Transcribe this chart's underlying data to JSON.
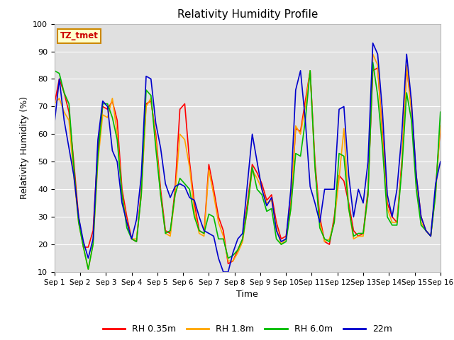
{
  "title": "Relativity Humidity Profile",
  "xlabel": "Time",
  "ylabel": "Relativity Humidity (%)",
  "ylim": [
    10,
    100
  ],
  "yticks": [
    10,
    20,
    30,
    40,
    50,
    60,
    70,
    80,
    90,
    100
  ],
  "xtick_labels": [
    "Sep 1",
    "Sep 2",
    "Sep 3",
    "Sep 4",
    "Sep 5",
    "Sep 6",
    "Sep 7",
    "Sep 8",
    "Sep 9",
    "Sep 10",
    "Sep 11",
    "Sep 12",
    "Sep 13",
    "Sep 14",
    "Sep 15",
    "Sep 16"
  ],
  "plot_bg_color": "#e0e0e0",
  "grid_color": "#ffffff",
  "legend_labels": [
    "RH 0.35m",
    "RH 1.8m",
    "RH 6.0m",
    "22m"
  ],
  "legend_colors": [
    "#ff0000",
    "#ffa500",
    "#00bb00",
    "#0000cc"
  ],
  "annotation_text": "TZ_tmet",
  "annotation_color": "#cc0000",
  "annotation_bg": "#ffffcc",
  "annotation_border": "#cc8800",
  "line_width": 1.2,
  "rh035": [
    71,
    80,
    75,
    68,
    50,
    30,
    19,
    19,
    25,
    55,
    70,
    69,
    72,
    65,
    40,
    30,
    22,
    21,
    40,
    71,
    72,
    60,
    40,
    25,
    24,
    40,
    69,
    71,
    50,
    35,
    25,
    24,
    49,
    40,
    30,
    25,
    13,
    14,
    18,
    22,
    35,
    49,
    46,
    42,
    36,
    38,
    28,
    22,
    23,
    35,
    62,
    61,
    72,
    83,
    50,
    30,
    21,
    20,
    30,
    45,
    43,
    35,
    25,
    23,
    24,
    40,
    83,
    84,
    60,
    35,
    30,
    28,
    50,
    84,
    70,
    45,
    30,
    25,
    23,
    40,
    63
  ],
  "rh18": [
    71,
    73,
    68,
    65,
    45,
    28,
    19,
    11,
    20,
    50,
    67,
    66,
    73,
    60,
    38,
    28,
    22,
    22,
    38,
    70,
    73,
    58,
    38,
    24,
    23,
    38,
    60,
    58,
    48,
    32,
    24,
    23,
    47,
    38,
    28,
    23,
    14,
    14,
    17,
    21,
    33,
    47,
    44,
    40,
    35,
    36,
    26,
    20,
    22,
    33,
    63,
    60,
    70,
    83,
    48,
    28,
    21,
    22,
    28,
    44,
    62,
    33,
    22,
    23,
    23,
    38,
    89,
    85,
    58,
    33,
    28,
    28,
    48,
    85,
    68,
    42,
    28,
    25,
    23,
    38,
    63
  ],
  "rh60": [
    83,
    82,
    75,
    71,
    48,
    28,
    19,
    11,
    20,
    52,
    71,
    71,
    66,
    58,
    38,
    26,
    22,
    21,
    38,
    76,
    74,
    55,
    38,
    24,
    25,
    38,
    44,
    42,
    40,
    30,
    25,
    24,
    31,
    30,
    22,
    22,
    15,
    16,
    18,
    22,
    33,
    48,
    40,
    38,
    32,
    33,
    22,
    20,
    21,
    33,
    53,
    52,
    65,
    83,
    48,
    26,
    22,
    21,
    28,
    53,
    52,
    33,
    23,
    24,
    24,
    38,
    86,
    74,
    55,
    30,
    27,
    27,
    47,
    75,
    65,
    40,
    27,
    25,
    23,
    38,
    68
  ],
  "rh22m": [
    64,
    80,
    65,
    55,
    45,
    30,
    21,
    15,
    22,
    58,
    72,
    70,
    54,
    50,
    35,
    28,
    22,
    29,
    45,
    81,
    80,
    64,
    55,
    42,
    37,
    41,
    42,
    41,
    37,
    36,
    30,
    25,
    24,
    23,
    15,
    10,
    10,
    17,
    22,
    24,
    42,
    60,
    50,
    40,
    34,
    37,
    25,
    21,
    22,
    40,
    76,
    83,
    65,
    41,
    35,
    28,
    40,
    40,
    40,
    69,
    70,
    45,
    30,
    40,
    35,
    50,
    93,
    89,
    68,
    38,
    30,
    40,
    60,
    89,
    72,
    45,
    30,
    25,
    23,
    42,
    50
  ]
}
